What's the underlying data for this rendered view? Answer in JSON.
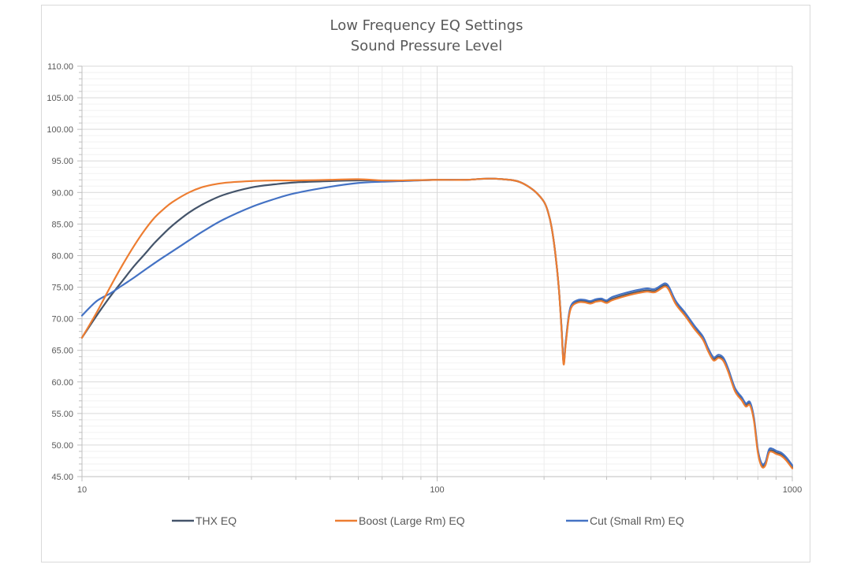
{
  "chart_data": {
    "type": "line",
    "title": [
      "Low Frequency EQ Settings",
      "Sound Pressure Level"
    ],
    "xlabel": "",
    "ylabel": "",
    "x_scale": "log",
    "xlim": [
      10,
      1000
    ],
    "ylim": [
      45,
      110
    ],
    "x_tick_labels": [
      "10",
      "100",
      "1000"
    ],
    "y_tick_labels": [
      "45.00",
      "50.00",
      "55.00",
      "60.00",
      "65.00",
      "70.00",
      "75.00",
      "80.00",
      "85.00",
      "90.00",
      "95.00",
      "100.00",
      "105.00",
      "110.00"
    ],
    "grid": "on (major and minor)",
    "legend_position": "bottom",
    "series": [
      {
        "name": "THX EQ",
        "color": "#44546A",
        "points": [
          [
            10,
            67.0
          ],
          [
            11,
            70.5
          ],
          [
            12,
            73.5
          ],
          [
            13,
            76.0
          ],
          [
            14,
            78.3
          ],
          [
            15,
            80.2
          ],
          [
            16,
            82.0
          ],
          [
            17,
            83.5
          ],
          [
            18,
            84.8
          ],
          [
            20,
            86.8
          ],
          [
            22,
            88.2
          ],
          [
            25,
            89.6
          ],
          [
            30,
            90.8
          ],
          [
            35,
            91.3
          ],
          [
            40,
            91.6
          ],
          [
            50,
            91.8
          ],
          [
            60,
            91.9
          ],
          [
            70,
            91.9
          ],
          [
            80,
            91.9
          ],
          [
            100,
            92.0
          ],
          [
            120,
            92.0
          ],
          [
            140,
            92.2
          ],
          [
            160,
            92.0
          ],
          [
            170,
            91.7
          ],
          [
            180,
            91.0
          ],
          [
            190,
            90.0
          ],
          [
            200,
            88.5
          ],
          [
            205,
            87.0
          ],
          [
            210,
            84.5
          ],
          [
            215,
            80.5
          ],
          [
            220,
            75.0
          ],
          [
            224,
            68.5
          ],
          [
            227,
            63.0
          ],
          [
            230,
            66.0
          ],
          [
            235,
            70.5
          ],
          [
            240,
            72.2
          ],
          [
            250,
            72.8
          ],
          [
            260,
            72.8
          ],
          [
            270,
            72.6
          ],
          [
            280,
            72.9
          ],
          [
            290,
            73.0
          ],
          [
            300,
            72.7
          ],
          [
            310,
            73.1
          ],
          [
            330,
            73.6
          ],
          [
            350,
            74.0
          ],
          [
            370,
            74.3
          ],
          [
            390,
            74.5
          ],
          [
            410,
            74.4
          ],
          [
            430,
            75.1
          ],
          [
            440,
            75.3
          ],
          [
            450,
            74.7
          ],
          [
            470,
            72.5
          ],
          [
            500,
            70.6
          ],
          [
            530,
            68.6
          ],
          [
            560,
            66.9
          ],
          [
            580,
            65.0
          ],
          [
            600,
            63.6
          ],
          [
            620,
            64.0
          ],
          [
            640,
            63.5
          ],
          [
            660,
            61.8
          ],
          [
            690,
            58.7
          ],
          [
            720,
            57.3
          ],
          [
            740,
            56.3
          ],
          [
            760,
            56.5
          ],
          [
            780,
            54.0
          ],
          [
            800,
            49.0
          ],
          [
            820,
            46.8
          ],
          [
            840,
            47.0
          ],
          [
            860,
            49.0
          ],
          [
            880,
            49.1
          ],
          [
            900,
            48.8
          ],
          [
            930,
            48.5
          ],
          [
            960,
            47.8
          ],
          [
            1000,
            46.5
          ]
        ]
      },
      {
        "name": "Boost (Large Rm) EQ",
        "color": "#ED7D31",
        "points": [
          [
            10,
            67.0
          ],
          [
            11,
            71.0
          ],
          [
            12,
            75.0
          ],
          [
            13,
            78.5
          ],
          [
            14,
            81.5
          ],
          [
            15,
            84.0
          ],
          [
            16,
            86.0
          ],
          [
            17,
            87.4
          ],
          [
            18,
            88.5
          ],
          [
            20,
            90.0
          ],
          [
            22,
            90.9
          ],
          [
            25,
            91.5
          ],
          [
            30,
            91.8
          ],
          [
            35,
            91.9
          ],
          [
            40,
            91.9
          ],
          [
            50,
            92.0
          ],
          [
            60,
            92.1
          ],
          [
            70,
            91.9
          ],
          [
            80,
            91.9
          ],
          [
            100,
            92.0
          ],
          [
            120,
            92.0
          ],
          [
            140,
            92.2
          ],
          [
            160,
            92.0
          ],
          [
            170,
            91.7
          ],
          [
            180,
            91.0
          ],
          [
            190,
            90.0
          ],
          [
            200,
            88.5
          ],
          [
            205,
            87.0
          ],
          [
            210,
            84.5
          ],
          [
            215,
            80.5
          ],
          [
            220,
            75.0
          ],
          [
            224,
            68.3
          ],
          [
            227,
            62.8
          ],
          [
            230,
            65.8
          ],
          [
            235,
            70.3
          ],
          [
            240,
            72.0
          ],
          [
            250,
            72.6
          ],
          [
            260,
            72.6
          ],
          [
            270,
            72.4
          ],
          [
            280,
            72.7
          ],
          [
            290,
            72.8
          ],
          [
            300,
            72.5
          ],
          [
            310,
            72.9
          ],
          [
            330,
            73.4
          ],
          [
            350,
            73.8
          ],
          [
            370,
            74.1
          ],
          [
            390,
            74.3
          ],
          [
            410,
            74.2
          ],
          [
            430,
            74.9
          ],
          [
            440,
            75.1
          ],
          [
            450,
            74.5
          ],
          [
            470,
            72.3
          ],
          [
            500,
            70.4
          ],
          [
            530,
            68.4
          ],
          [
            560,
            66.7
          ],
          [
            580,
            64.8
          ],
          [
            600,
            63.4
          ],
          [
            620,
            63.8
          ],
          [
            640,
            63.3
          ],
          [
            660,
            61.6
          ],
          [
            690,
            58.5
          ],
          [
            720,
            57.1
          ],
          [
            740,
            56.1
          ],
          [
            760,
            56.3
          ],
          [
            780,
            53.8
          ],
          [
            800,
            48.8
          ],
          [
            820,
            46.6
          ],
          [
            840,
            46.8
          ],
          [
            860,
            48.8
          ],
          [
            880,
            48.9
          ],
          [
            900,
            48.6
          ],
          [
            930,
            48.3
          ],
          [
            960,
            47.6
          ],
          [
            1000,
            46.3
          ]
        ]
      },
      {
        "name": "Cut (Small Rm) EQ",
        "color": "#4472C4",
        "points": [
          [
            10,
            70.5
          ],
          [
            11,
            72.8
          ],
          [
            12,
            74.0
          ],
          [
            13,
            75.3
          ],
          [
            14,
            76.5
          ],
          [
            15,
            77.7
          ],
          [
            16,
            78.8
          ],
          [
            17,
            79.8
          ],
          [
            18,
            80.7
          ],
          [
            20,
            82.4
          ],
          [
            22,
            83.9
          ],
          [
            25,
            85.7
          ],
          [
            30,
            87.7
          ],
          [
            35,
            89.0
          ],
          [
            40,
            89.9
          ],
          [
            50,
            90.9
          ],
          [
            60,
            91.5
          ],
          [
            70,
            91.7
          ],
          [
            80,
            91.8
          ],
          [
            100,
            92.0
          ],
          [
            120,
            92.0
          ],
          [
            140,
            92.2
          ],
          [
            160,
            92.0
          ],
          [
            170,
            91.7
          ],
          [
            180,
            91.0
          ],
          [
            190,
            90.0
          ],
          [
            200,
            88.5
          ],
          [
            205,
            87.0
          ],
          [
            210,
            84.5
          ],
          [
            215,
            80.5
          ],
          [
            220,
            75.0
          ],
          [
            224,
            68.7
          ],
          [
            227,
            63.2
          ],
          [
            230,
            66.2
          ],
          [
            235,
            70.7
          ],
          [
            240,
            72.4
          ],
          [
            250,
            73.0
          ],
          [
            260,
            73.0
          ],
          [
            270,
            72.8
          ],
          [
            280,
            73.1
          ],
          [
            290,
            73.2
          ],
          [
            300,
            72.9
          ],
          [
            310,
            73.4
          ],
          [
            330,
            73.9
          ],
          [
            350,
            74.3
          ],
          [
            370,
            74.6
          ],
          [
            390,
            74.8
          ],
          [
            410,
            74.7
          ],
          [
            430,
            75.4
          ],
          [
            440,
            75.6
          ],
          [
            450,
            75.0
          ],
          [
            470,
            72.8
          ],
          [
            500,
            70.9
          ],
          [
            530,
            68.9
          ],
          [
            560,
            67.2
          ],
          [
            580,
            65.3
          ],
          [
            600,
            63.9
          ],
          [
            620,
            64.3
          ],
          [
            640,
            63.8
          ],
          [
            660,
            62.1
          ],
          [
            690,
            59.0
          ],
          [
            720,
            57.6
          ],
          [
            740,
            56.6
          ],
          [
            760,
            56.8
          ],
          [
            780,
            54.3
          ],
          [
            800,
            49.3
          ],
          [
            820,
            47.1
          ],
          [
            840,
            47.3
          ],
          [
            860,
            49.3
          ],
          [
            880,
            49.4
          ],
          [
            900,
            49.1
          ],
          [
            930,
            48.8
          ],
          [
            960,
            48.1
          ],
          [
            1000,
            46.8
          ]
        ]
      }
    ]
  }
}
